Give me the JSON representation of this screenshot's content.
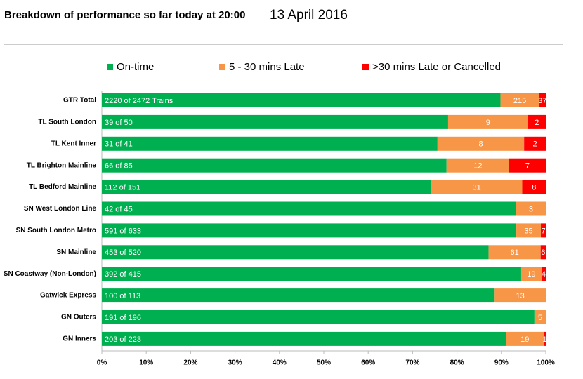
{
  "chart_data": {
    "type": "bar",
    "orientation": "horizontal",
    "stacking": "percent",
    "title": "Breakdown of performance so far today at 20:00",
    "subtitle": "13 April 2016",
    "categories": [
      "GTR Total",
      "TL South London",
      "TL Kent Inner",
      "TL Brighton Mainline",
      "TL Bedford Mainline",
      "SN West London Line",
      "SN South London Metro",
      "SN Mainline",
      "SN Coastway (Non-London)",
      "Gatwick Express",
      "GN Outers",
      "GN Inners"
    ],
    "series": [
      {
        "name": "On-time",
        "color": "#00b050",
        "values": [
          2220,
          39,
          31,
          66,
          112,
          42,
          591,
          453,
          392,
          100,
          191,
          203
        ],
        "value_labels": [
          "2220 of 2472 Trains",
          "39 of 50",
          "31 of 41",
          "66 of 85",
          "112 of 151",
          "42 of 45",
          "591 of 633",
          "453 of 520",
          "392 of 415",
          "100 of 113",
          "191 of 196",
          "203 of 223"
        ]
      },
      {
        "name": "5 - 30 mins Late",
        "color": "#f79646",
        "values": [
          215,
          9,
          8,
          12,
          31,
          3,
          35,
          61,
          19,
          13,
          5,
          19
        ]
      },
      {
        "name": ">30 mins Late or Cancelled",
        "color": "#ff0000",
        "values": [
          37,
          2,
          2,
          7,
          8,
          0,
          7,
          6,
          4,
          0,
          0,
          1
        ]
      }
    ],
    "xlim": [
      0,
      100
    ],
    "xticks": [
      {
        "value": 0,
        "label": "0%"
      },
      {
        "value": 10,
        "label": "10%"
      },
      {
        "value": 20,
        "label": "20%"
      },
      {
        "value": 30,
        "label": "30%"
      },
      {
        "value": 40,
        "label": "40%"
      },
      {
        "value": 50,
        "label": "50%"
      },
      {
        "value": 60,
        "label": "60%"
      },
      {
        "value": 70,
        "label": "70%"
      },
      {
        "value": 80,
        "label": "80%"
      },
      {
        "value": 90,
        "label": "90%"
      },
      {
        "value": 100,
        "label": "100%"
      }
    ],
    "grid": false
  }
}
